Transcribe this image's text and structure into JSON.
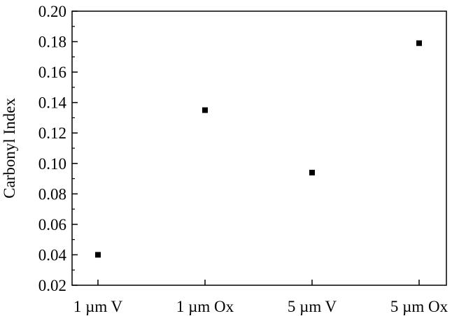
{
  "chart_data": {
    "type": "scatter",
    "title": "",
    "xlabel": "",
    "ylabel": "Carbonyl Index",
    "categories": [
      "1 µm V",
      "1 µm Ox",
      "5 µm V",
      "5 µm Ox"
    ],
    "values": [
      0.04,
      0.135,
      0.094,
      0.179
    ],
    "ylim": [
      0.02,
      0.2
    ],
    "yticks": [
      "0.02",
      "0.04",
      "0.06",
      "0.08",
      "0.10",
      "0.12",
      "0.14",
      "0.16",
      "0.18",
      "0.20"
    ],
    "grid": false,
    "legend": "none",
    "marker": "square",
    "marker_color": "#000000"
  }
}
